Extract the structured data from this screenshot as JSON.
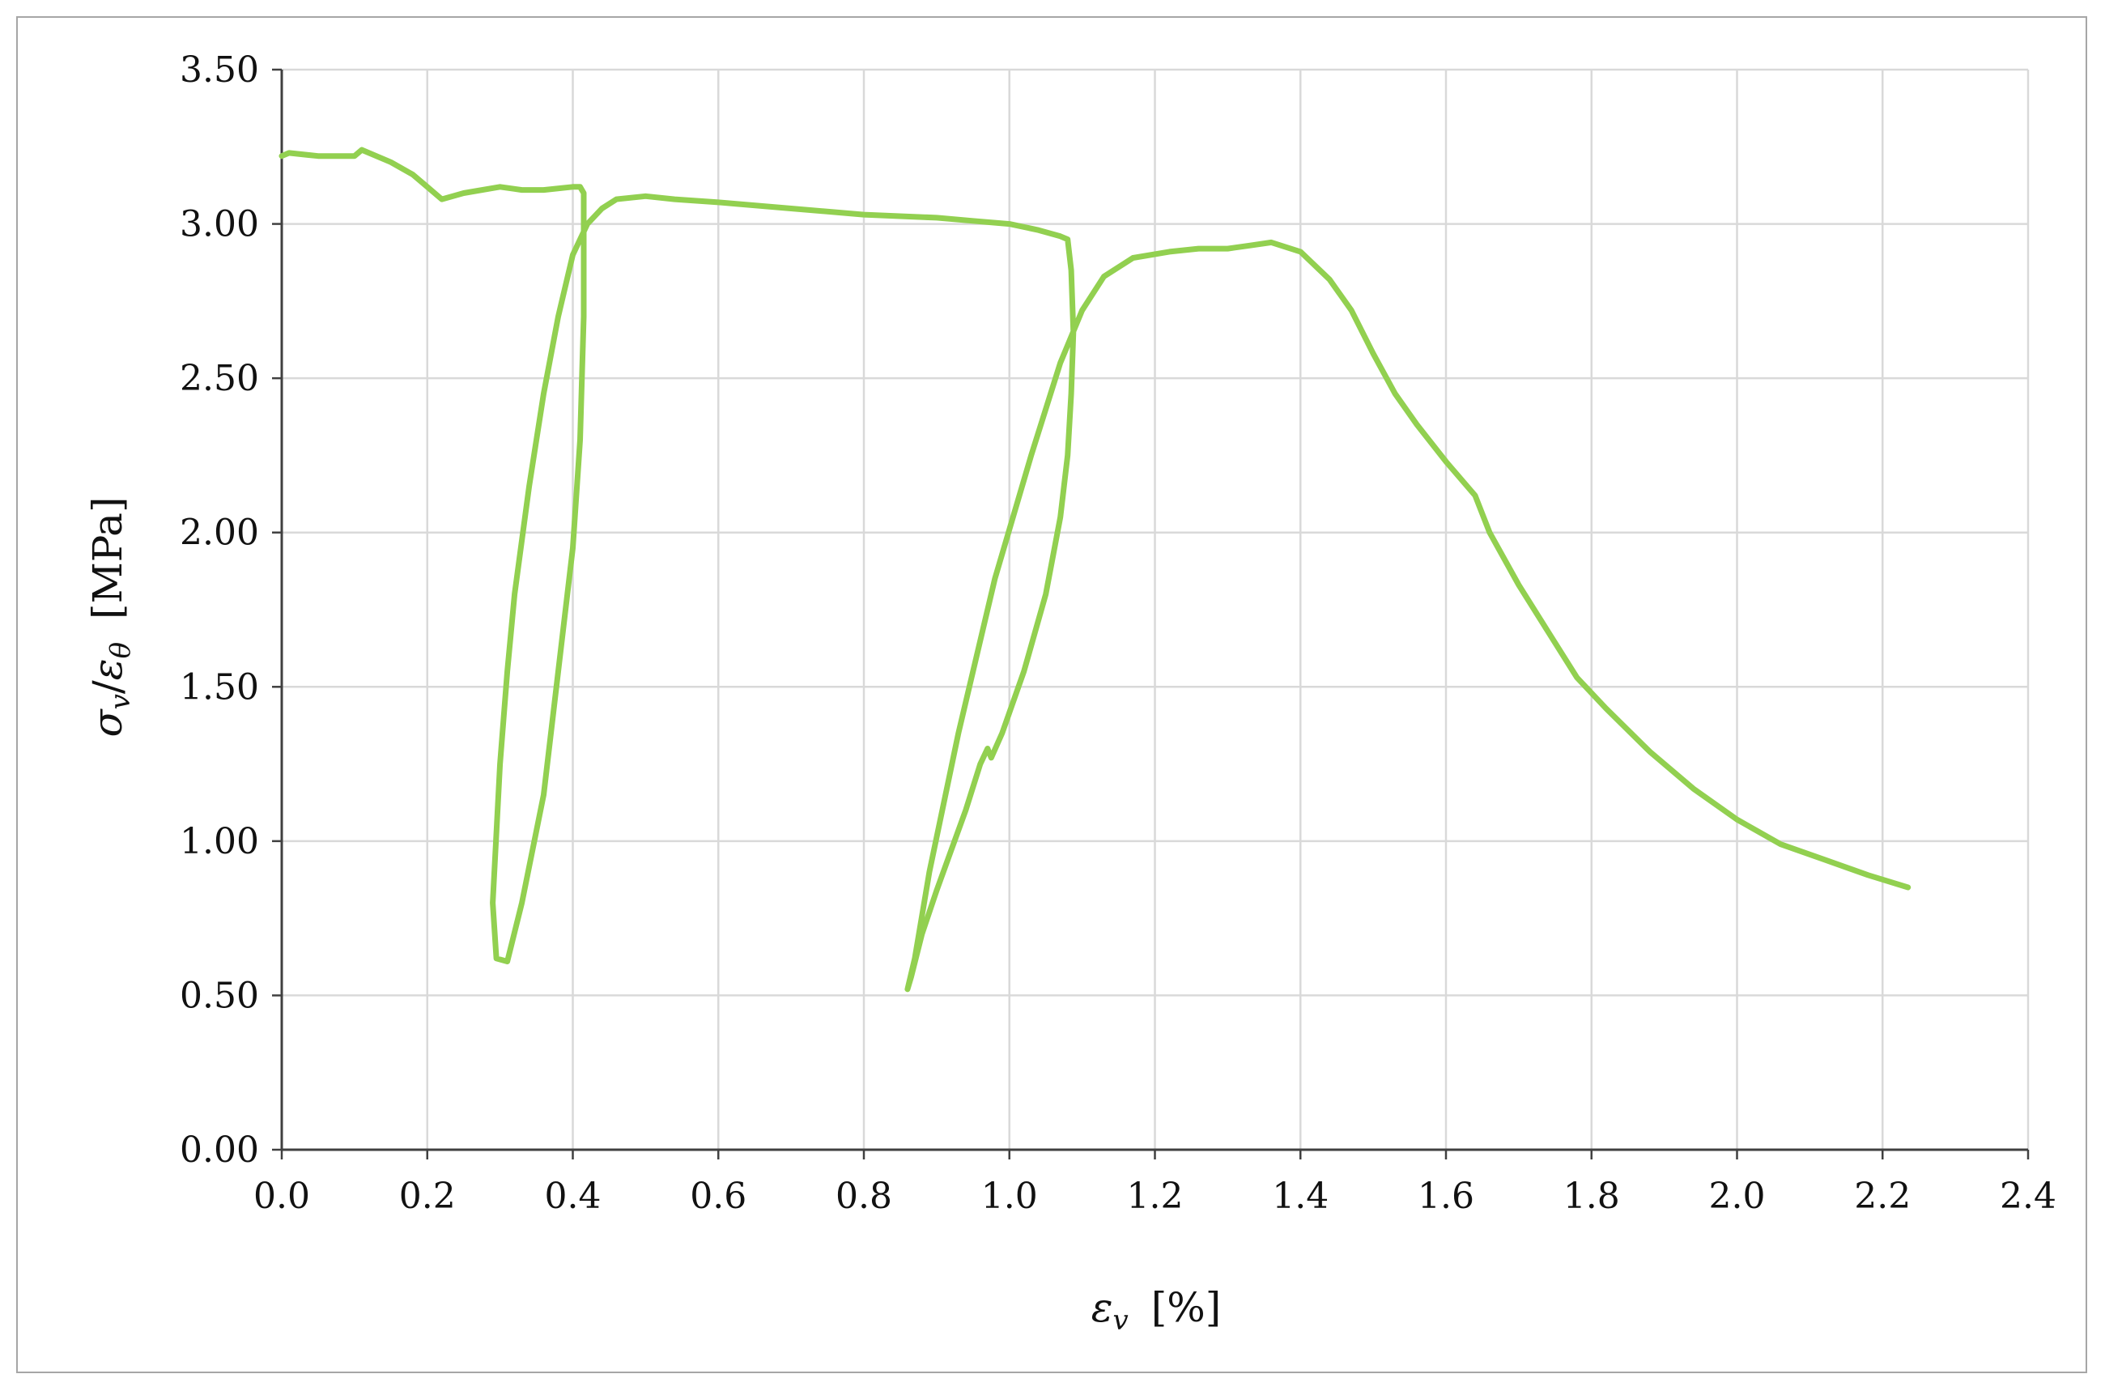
{
  "chart_data": {
    "type": "line",
    "xlabel": {
      "symbol": "ε",
      "subscript": "v",
      "unit": "[%]"
    },
    "ylabel": {
      "numerator_symbol": "σ",
      "numerator_subscript": "v",
      "denominator_symbol": "ε",
      "denominator_subscript": "θ",
      "unit": "[MPa]"
    },
    "xlim": [
      0,
      2.4
    ],
    "ylim": [
      0,
      3.5
    ],
    "x_ticks": [
      "0.0",
      "0.2",
      "0.4",
      "0.6",
      "0.8",
      "1.0",
      "1.2",
      "1.4",
      "1.6",
      "1.8",
      "2.0",
      "2.2",
      "2.4"
    ],
    "y_ticks": [
      "0.00",
      "0.50",
      "1.00",
      "1.50",
      "2.00",
      "2.50",
      "3.00",
      "3.50"
    ],
    "grid": true,
    "legend": "none",
    "series": [
      {
        "color": "#92d050",
        "x": [
          0.0,
          0.01,
          0.05,
          0.1,
          0.11,
          0.15,
          0.18,
          0.2,
          0.22,
          0.25,
          0.3,
          0.33,
          0.36,
          0.4,
          0.41,
          0.415,
          0.415,
          0.41,
          0.4,
          0.38,
          0.36,
          0.33,
          0.31,
          0.295,
          0.29,
          0.3,
          0.31,
          0.32,
          0.34,
          0.36,
          0.38,
          0.4,
          0.42,
          0.44,
          0.46,
          0.5,
          0.54,
          0.6,
          0.7,
          0.8,
          0.9,
          0.95,
          1.0,
          1.04,
          1.07,
          1.08,
          1.085,
          1.088,
          1.085,
          1.08,
          1.07,
          1.05,
          1.02,
          0.99,
          0.975,
          0.97,
          0.96,
          0.94,
          0.92,
          0.9,
          0.88,
          0.865,
          0.86,
          0.87,
          0.89,
          0.93,
          0.98,
          1.03,
          1.07,
          1.1,
          1.13,
          1.17,
          1.22,
          1.26,
          1.3,
          1.33,
          1.36,
          1.4,
          1.44,
          1.47,
          1.5,
          1.53,
          1.56,
          1.6,
          1.64,
          1.66,
          1.7,
          1.74,
          1.78,
          1.82,
          1.88,
          1.94,
          2.0,
          2.06,
          2.12,
          2.18,
          2.235
        ],
        "y": [
          3.22,
          3.23,
          3.22,
          3.22,
          3.24,
          3.2,
          3.16,
          3.12,
          3.08,
          3.1,
          3.12,
          3.11,
          3.11,
          3.12,
          3.12,
          3.1,
          2.7,
          2.3,
          1.95,
          1.55,
          1.15,
          0.8,
          0.61,
          0.62,
          0.8,
          1.25,
          1.55,
          1.8,
          2.15,
          2.45,
          2.7,
          2.9,
          3.0,
          3.05,
          3.08,
          3.09,
          3.08,
          3.07,
          3.05,
          3.03,
          3.02,
          3.01,
          3.0,
          2.98,
          2.96,
          2.95,
          2.85,
          2.65,
          2.45,
          2.25,
          2.05,
          1.8,
          1.55,
          1.35,
          1.27,
          1.3,
          1.25,
          1.1,
          0.97,
          0.84,
          0.7,
          0.56,
          0.52,
          0.62,
          0.9,
          1.35,
          1.85,
          2.25,
          2.55,
          2.72,
          2.83,
          2.89,
          2.91,
          2.92,
          2.92,
          2.93,
          2.94,
          2.91,
          2.82,
          2.72,
          2.58,
          2.45,
          2.35,
          2.23,
          2.12,
          2.0,
          1.83,
          1.68,
          1.53,
          1.43,
          1.29,
          1.17,
          1.07,
          0.99,
          0.94,
          0.89,
          0.85
        ]
      }
    ]
  }
}
